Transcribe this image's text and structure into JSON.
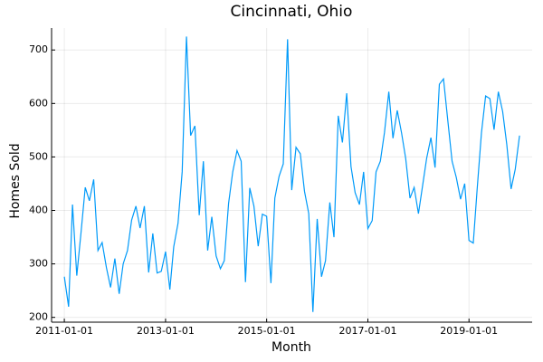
{
  "chart_data": {
    "type": "line",
    "title": "Cincinnati, Ohio",
    "xlabel": "Month",
    "ylabel": "Homes Sold",
    "x": [
      "2011-01-01",
      "2011-02-01",
      "2011-03-01",
      "2011-04-01",
      "2011-05-01",
      "2011-06-01",
      "2011-07-01",
      "2011-08-01",
      "2011-09-01",
      "2011-10-01",
      "2011-11-01",
      "2011-12-01",
      "2012-01-01",
      "2012-02-01",
      "2012-03-01",
      "2012-04-01",
      "2012-05-01",
      "2012-06-01",
      "2012-07-01",
      "2012-08-01",
      "2012-09-01",
      "2012-10-01",
      "2012-11-01",
      "2012-12-01",
      "2013-01-01",
      "2013-02-01",
      "2013-03-01",
      "2013-04-01",
      "2013-05-01",
      "2013-06-01",
      "2013-07-01",
      "2013-08-01",
      "2013-09-01",
      "2013-10-01",
      "2013-11-01",
      "2013-12-01",
      "2014-01-01",
      "2014-02-01",
      "2014-03-01",
      "2014-04-01",
      "2014-05-01",
      "2014-06-01",
      "2014-07-01",
      "2014-08-01",
      "2014-09-01",
      "2014-10-01",
      "2014-11-01",
      "2014-12-01",
      "2015-01-01",
      "2015-02-01",
      "2015-03-01",
      "2015-04-01",
      "2015-05-01",
      "2015-06-01",
      "2015-07-01",
      "2015-08-01",
      "2015-09-01",
      "2015-10-01",
      "2015-11-01",
      "2015-12-01",
      "2016-01-01",
      "2016-02-01",
      "2016-03-01",
      "2016-04-01",
      "2016-05-01",
      "2016-06-01",
      "2016-07-01",
      "2016-08-01",
      "2016-09-01",
      "2016-10-01",
      "2016-11-01",
      "2016-12-01",
      "2017-01-01",
      "2017-02-01",
      "2017-03-01",
      "2017-04-01",
      "2017-05-01",
      "2017-06-01",
      "2017-07-01",
      "2017-08-01",
      "2017-09-01",
      "2017-10-01",
      "2017-11-01",
      "2017-12-01",
      "2018-01-01",
      "2018-02-01",
      "2018-03-01",
      "2018-04-01",
      "2018-05-01",
      "2018-06-01",
      "2018-07-01",
      "2018-08-01",
      "2018-09-01",
      "2018-10-01",
      "2018-11-01",
      "2018-12-01",
      "2019-01-01",
      "2019-02-01",
      "2019-03-01",
      "2019-04-01",
      "2019-05-01",
      "2019-06-01",
      "2019-07-01",
      "2019-08-01",
      "2019-09-01",
      "2019-10-01",
      "2019-11-01",
      "2019-12-01",
      "2020-01-01"
    ],
    "series": [
      {
        "color": "#009af9",
        "values": [
          276,
          220,
          411,
          278,
          357,
          443,
          418,
          458,
          325,
          340,
          293,
          256,
          310,
          244,
          300,
          325,
          382,
          408,
          367,
          408,
          284,
          357,
          283,
          286,
          323,
          252,
          332,
          376,
          472,
          725,
          540,
          558,
          391,
          492,
          325,
          388,
          315,
          291,
          306,
          413,
          472,
          512,
          492,
          266,
          442,
          408,
          333,
          393,
          389,
          264,
          423,
          464,
          487,
          720,
          438,
          518,
          506,
          436,
          394,
          210,
          384,
          276,
          306,
          415,
          350,
          577,
          527,
          619,
          482,
          433,
          411,
          472,
          366,
          381,
          472,
          492,
          546,
          622,
          535,
          587,
          545,
          497,
          423,
          443,
          394,
          448,
          497,
          536,
          480,
          636,
          646,
          568,
          492,
          462,
          421,
          450,
          344,
          339,
          440,
          545,
          614,
          609,
          551,
          622,
          585,
          523,
          440,
          477,
          540
        ]
      }
    ],
    "xlim": [
      "2010-10-01",
      "2020-04-01"
    ],
    "xticks": [
      "2011-01-01",
      "2013-01-01",
      "2015-01-01",
      "2017-01-01",
      "2019-01-01"
    ],
    "ylim": [
      191,
      741
    ],
    "yticks": [
      200,
      300,
      400,
      500,
      600,
      700
    ],
    "grid": true
  }
}
